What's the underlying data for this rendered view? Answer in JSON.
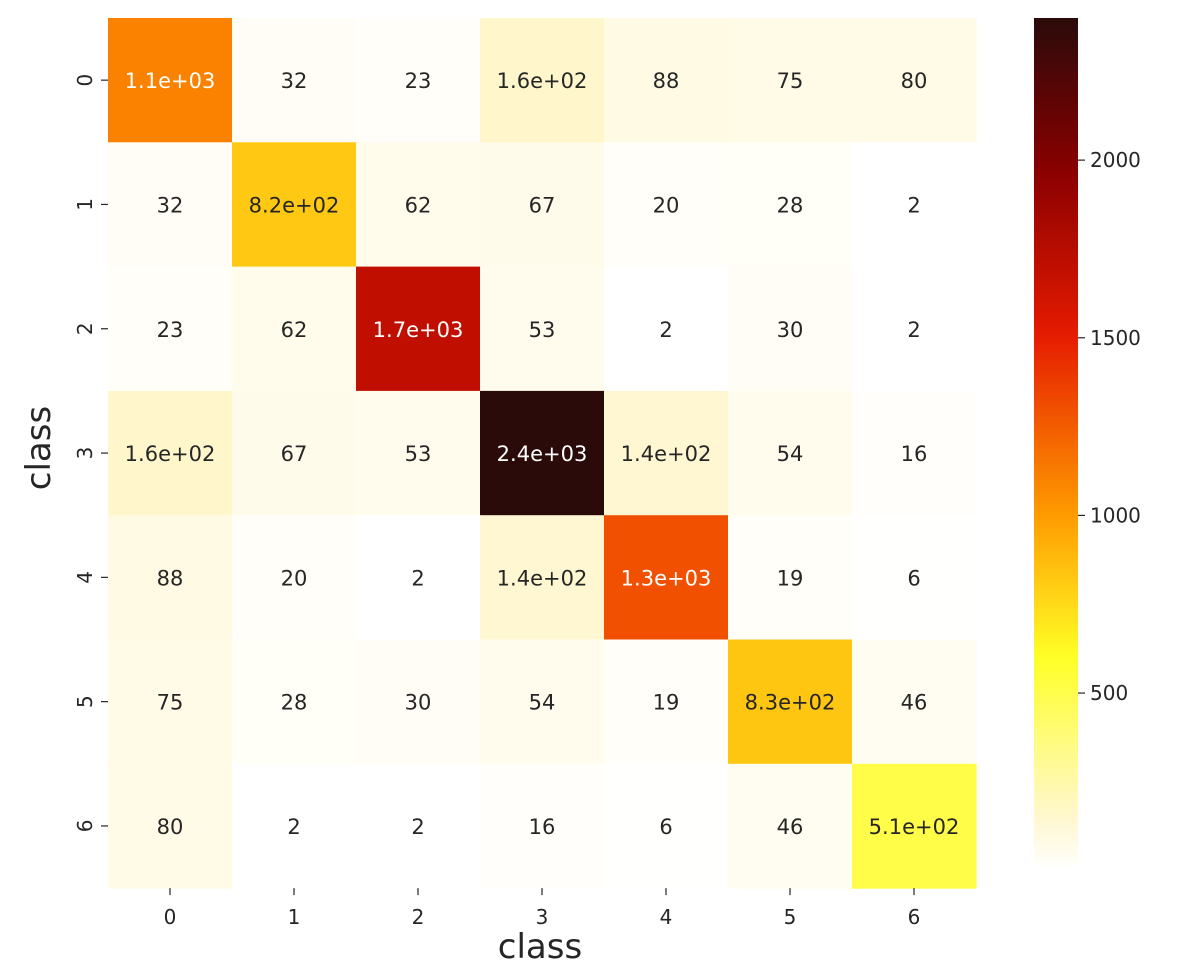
{
  "chart_data": {
    "type": "heatmap",
    "xlabel": "class",
    "ylabel": "class",
    "x_categories": [
      "0",
      "1",
      "2",
      "3",
      "4",
      "5",
      "6"
    ],
    "y_categories": [
      "0",
      "1",
      "2",
      "3",
      "4",
      "5",
      "6"
    ],
    "values": [
      [
        1100,
        32,
        23,
        160,
        88,
        75,
        80
      ],
      [
        32,
        820,
        62,
        67,
        20,
        28,
        2
      ],
      [
        23,
        62,
        1700,
        53,
        2,
        30,
        2
      ],
      [
        160,
        67,
        53,
        2400,
        140,
        54,
        16
      ],
      [
        88,
        20,
        2,
        140,
        1300,
        19,
        6
      ],
      [
        75,
        28,
        30,
        54,
        19,
        830,
        46
      ],
      [
        80,
        2,
        2,
        16,
        6,
        46,
        510
      ]
    ],
    "annotations": [
      [
        "1.1e+03",
        "32",
        "23",
        "1.6e+02",
        "88",
        "75",
        "80"
      ],
      [
        "32",
        "8.2e+02",
        "62",
        "67",
        "20",
        "28",
        "2"
      ],
      [
        "23",
        "62",
        "1.7e+03",
        "53",
        "2",
        "30",
        "2"
      ],
      [
        "1.6e+02",
        "67",
        "53",
        "2.4e+03",
        "1.4e+02",
        "54",
        "16"
      ],
      [
        "88",
        "20",
        "2",
        "1.4e+02",
        "1.3e+03",
        "19",
        "6"
      ],
      [
        "75",
        "28",
        "30",
        "54",
        "19",
        "8.3e+02",
        "46"
      ],
      [
        "80",
        "2",
        "2",
        "16",
        "6",
        "46",
        "5.1e+02"
      ]
    ],
    "colormap": "hot_r",
    "colorbar": {
      "vmin": 2,
      "vmax": 2400,
      "ticks": [
        500,
        1000,
        1500,
        2000
      ],
      "tick_labels": [
        "500",
        "1000",
        "1500",
        "2000"
      ]
    },
    "colors": {
      "low": "#ffffff",
      "pale": "#fff7d0",
      "yellow": "#ffff26",
      "orange": "#ff9900",
      "red": "#e51a00",
      "darkred": "#8a0000",
      "black": "#2b0a0a"
    }
  }
}
